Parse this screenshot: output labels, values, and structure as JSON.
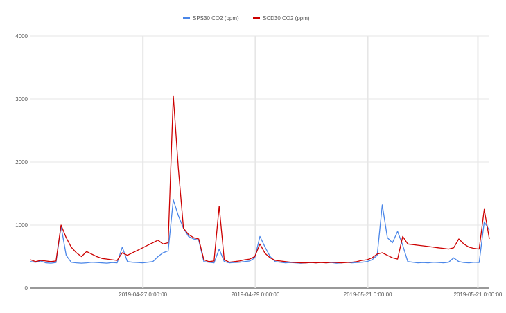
{
  "chart_data": {
    "type": "line",
    "title": "",
    "xlabel": "",
    "ylabel": "",
    "ylim": [
      0,
      4000
    ],
    "y_ticks": [
      0,
      1000,
      2000,
      3000,
      4000
    ],
    "x_range": [
      "2019-04-27 00:00:00",
      "2019-05-21 12:00:00"
    ],
    "x_ticks": [
      "2019-04-27 0:00:00",
      "2019-04-29 0:00:00",
      "2019-05-21 0:00:00",
      "2019-05-21 0:00:00"
    ],
    "grid": true,
    "legend_position": "top",
    "series": [
      {
        "name": "SPS30 CO2 (ppm)",
        "color": "#4a86e8",
        "points": [
          [
            0,
            420
          ],
          [
            1,
            410
          ],
          [
            2,
            430
          ],
          [
            3,
            400
          ],
          [
            4,
            395
          ],
          [
            5,
            405
          ],
          [
            6,
            980
          ],
          [
            7,
            520
          ],
          [
            8,
            410
          ],
          [
            9,
            400
          ],
          [
            10,
            395
          ],
          [
            11,
            400
          ],
          [
            12,
            410
          ],
          [
            13,
            405
          ],
          [
            14,
            400
          ],
          [
            15,
            395
          ],
          [
            16,
            405
          ],
          [
            17,
            400
          ],
          [
            18,
            650
          ],
          [
            19,
            420
          ],
          [
            20,
            410
          ],
          [
            21,
            405
          ],
          [
            22,
            400
          ],
          [
            23,
            410
          ],
          [
            24,
            420
          ],
          [
            25,
            500
          ],
          [
            26,
            560
          ],
          [
            27,
            590
          ],
          [
            28,
            1400
          ],
          [
            29,
            1150
          ],
          [
            30,
            950
          ],
          [
            31,
            820
          ],
          [
            32,
            780
          ],
          [
            33,
            760
          ],
          [
            34,
            420
          ],
          [
            35,
            410
          ],
          [
            36,
            400
          ],
          [
            37,
            620
          ],
          [
            38,
            420
          ],
          [
            39,
            400
          ],
          [
            40,
            405
          ],
          [
            41,
            410
          ],
          [
            42,
            420
          ],
          [
            43,
            430
          ],
          [
            44,
            480
          ],
          [
            45,
            820
          ],
          [
            46,
            650
          ],
          [
            47,
            500
          ],
          [
            48,
            420
          ],
          [
            49,
            410
          ],
          [
            50,
            400
          ],
          [
            51,
            405
          ],
          [
            52,
            400
          ],
          [
            53,
            395
          ],
          [
            54,
            400
          ],
          [
            55,
            405
          ],
          [
            56,
            400
          ],
          [
            57,
            410
          ],
          [
            58,
            400
          ],
          [
            59,
            405
          ],
          [
            60,
            395
          ],
          [
            61,
            400
          ],
          [
            62,
            410
          ],
          [
            63,
            400
          ],
          [
            64,
            405
          ],
          [
            65,
            410
          ],
          [
            66,
            420
          ],
          [
            67,
            450
          ],
          [
            68,
            520
          ],
          [
            69,
            1320
          ],
          [
            70,
            800
          ],
          [
            71,
            720
          ],
          [
            72,
            900
          ],
          [
            73,
            680
          ],
          [
            74,
            420
          ],
          [
            75,
            410
          ],
          [
            76,
            400
          ],
          [
            77,
            405
          ],
          [
            78,
            400
          ],
          [
            79,
            410
          ],
          [
            80,
            405
          ],
          [
            81,
            400
          ],
          [
            82,
            410
          ],
          [
            83,
            480
          ],
          [
            84,
            420
          ],
          [
            85,
            405
          ],
          [
            86,
            400
          ],
          [
            87,
            410
          ],
          [
            88,
            405
          ],
          [
            89,
            1050
          ],
          [
            90,
            920
          ]
        ]
      },
      {
        "name": "SCD30 CO2 (ppm)",
        "color": "#cc0000",
        "points": [
          [
            0,
            450
          ],
          [
            1,
            420
          ],
          [
            2,
            440
          ],
          [
            3,
            430
          ],
          [
            4,
            420
          ],
          [
            5,
            430
          ],
          [
            6,
            1000
          ],
          [
            7,
            800
          ],
          [
            8,
            650
          ],
          [
            9,
            560
          ],
          [
            10,
            500
          ],
          [
            11,
            580
          ],
          [
            12,
            540
          ],
          [
            13,
            500
          ],
          [
            14,
            470
          ],
          [
            15,
            460
          ],
          [
            16,
            450
          ],
          [
            17,
            440
          ],
          [
            18,
            560
          ],
          [
            19,
            520
          ],
          [
            20,
            560
          ],
          [
            21,
            600
          ],
          [
            22,
            640
          ],
          [
            23,
            680
          ],
          [
            24,
            720
          ],
          [
            25,
            760
          ],
          [
            26,
            700
          ],
          [
            27,
            720
          ],
          [
            28,
            3050
          ],
          [
            29,
            1900
          ],
          [
            30,
            950
          ],
          [
            31,
            850
          ],
          [
            32,
            800
          ],
          [
            33,
            780
          ],
          [
            34,
            450
          ],
          [
            35,
            420
          ],
          [
            36,
            430
          ],
          [
            37,
            1300
          ],
          [
            38,
            450
          ],
          [
            39,
            410
          ],
          [
            40,
            420
          ],
          [
            41,
            430
          ],
          [
            42,
            450
          ],
          [
            43,
            460
          ],
          [
            44,
            500
          ],
          [
            45,
            700
          ],
          [
            46,
            550
          ],
          [
            47,
            480
          ],
          [
            48,
            440
          ],
          [
            49,
            430
          ],
          [
            50,
            420
          ],
          [
            51,
            410
          ],
          [
            52,
            405
          ],
          [
            53,
            400
          ],
          [
            54,
            400
          ],
          [
            55,
            405
          ],
          [
            56,
            400
          ],
          [
            57,
            405
          ],
          [
            58,
            400
          ],
          [
            59,
            410
          ],
          [
            60,
            405
          ],
          [
            61,
            400
          ],
          [
            62,
            405
          ],
          [
            63,
            410
          ],
          [
            64,
            420
          ],
          [
            65,
            440
          ],
          [
            66,
            450
          ],
          [
            67,
            480
          ],
          [
            68,
            540
          ],
          [
            69,
            560
          ],
          [
            70,
            520
          ],
          [
            71,
            480
          ],
          [
            72,
            460
          ],
          [
            73,
            820
          ],
          [
            74,
            700
          ],
          [
            75,
            690
          ],
          [
            76,
            680
          ],
          [
            77,
            670
          ],
          [
            78,
            660
          ],
          [
            79,
            650
          ],
          [
            80,
            640
          ],
          [
            81,
            630
          ],
          [
            82,
            620
          ],
          [
            83,
            640
          ],
          [
            84,
            780
          ],
          [
            85,
            700
          ],
          [
            86,
            650
          ],
          [
            87,
            630
          ],
          [
            88,
            620
          ],
          [
            89,
            1250
          ],
          [
            90,
            780
          ]
        ]
      }
    ]
  }
}
